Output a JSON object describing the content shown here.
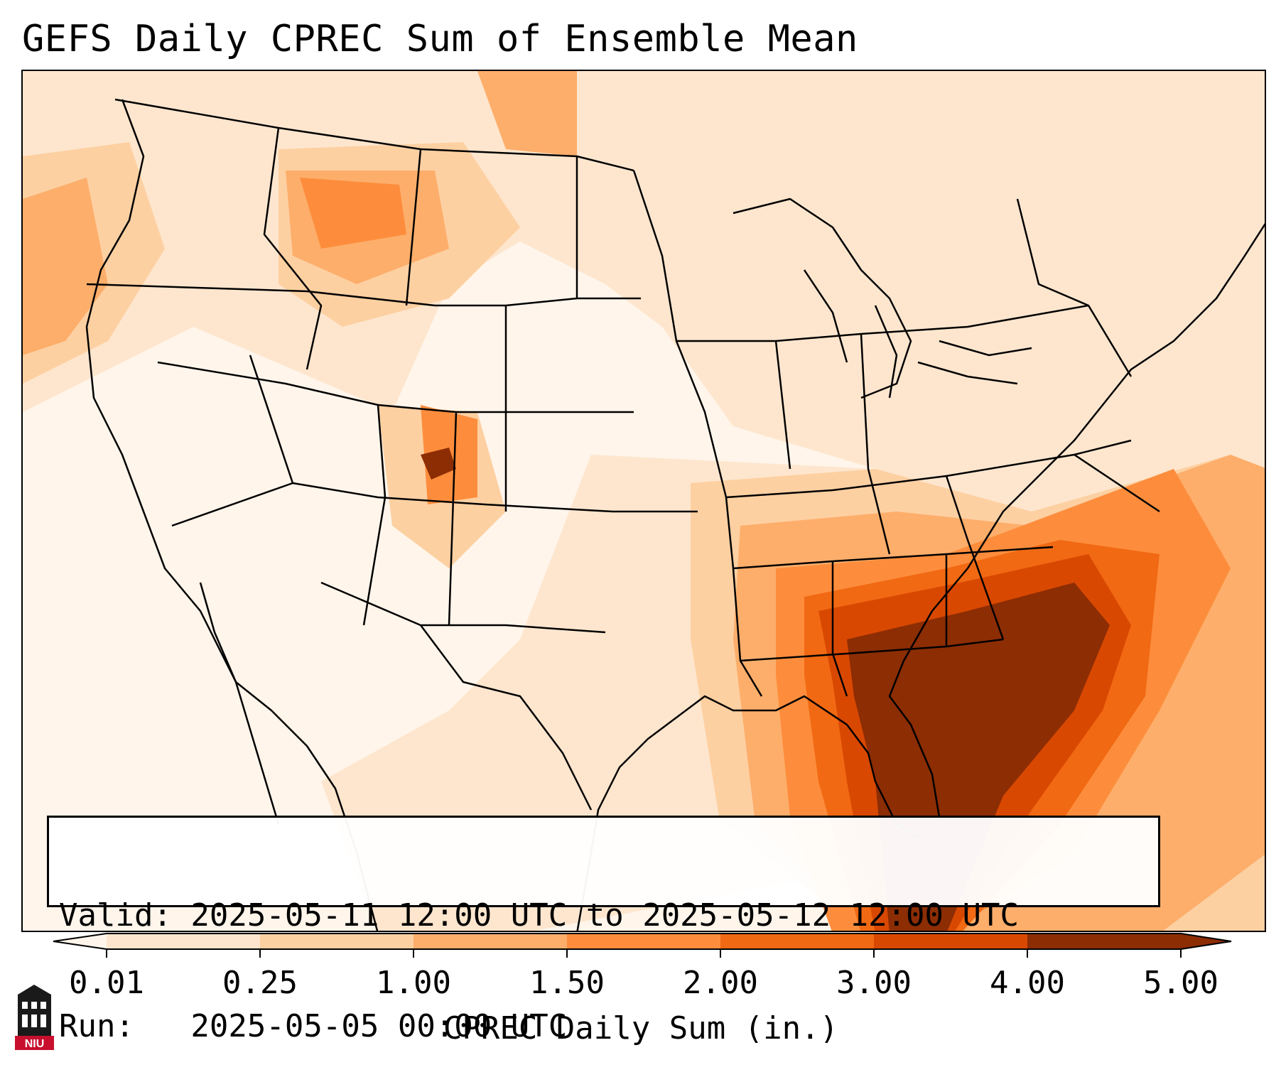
{
  "title": "GEFS Daily CPREC Sum of Ensemble Mean",
  "info": {
    "valid_line": "Valid: 2025-05-11 12:00 UTC to 2025-05-12 12:00 UTC",
    "run_line": "Run:   2025-05-05 00:00 UTC"
  },
  "colorbar": {
    "label": "CPREC Daily Sum (in.)",
    "ticks": [
      "0.01",
      "0.25",
      "1.00",
      "1.50",
      "2.00",
      "3.00",
      "4.00",
      "5.00"
    ],
    "colors": [
      "#fff5eb",
      "#fee6ce",
      "#fdd0a2",
      "#fdae6b",
      "#fd8d3c",
      "#f16913",
      "#d94801",
      "#8c2d04"
    ],
    "extend": "both"
  },
  "logo": {
    "text": "NIU",
    "color": "#c8102e"
  }
}
